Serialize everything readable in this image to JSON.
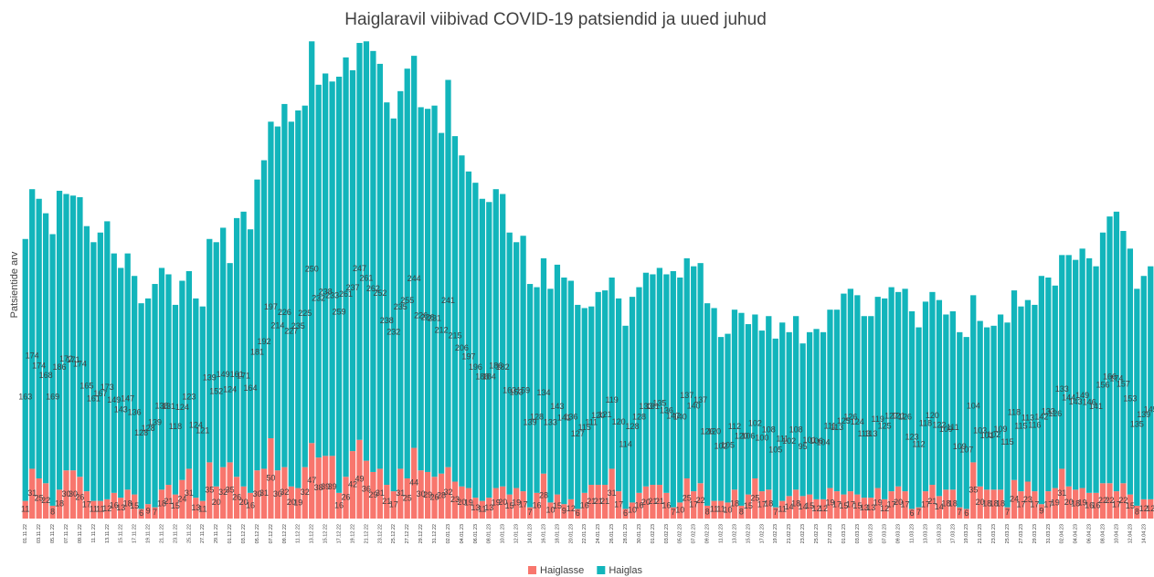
{
  "chart_data": {
    "type": "stacked_bar",
    "title": "Haiglaravil viibivad COVID-19 patsiendid ja uued juhud",
    "y_label": "Patsientide arv",
    "ylim": [
      0,
      300
    ],
    "legend": "bottom",
    "categories": [
      "01.11.22",
      null,
      "03.11.22",
      null,
      "05.11.22",
      null,
      "07.11.22",
      null,
      "09.11.22",
      null,
      "11.11.22",
      null,
      "13.11.22",
      null,
      "15.11.22",
      null,
      "17.11.22",
      null,
      "19.11.22",
      null,
      "21.11.22",
      null,
      "23.11.22",
      null,
      "25.11.22",
      null,
      "27.11.22",
      null,
      "29.11.22",
      null,
      "01.12.22",
      null,
      "03.12.22",
      null,
      "05.12.22",
      null,
      "07.12.22",
      null,
      "09.12.22",
      null,
      "11.12.22",
      null,
      "13.12.22",
      null,
      "15.12.22",
      null,
      "17.12.22",
      null,
      "19.12.22",
      null,
      "21.12.22",
      null,
      "23.12.22",
      null,
      "25.12.22",
      null,
      "27.12.22",
      null,
      "29.12.22",
      null,
      "31.12.22",
      null,
      "02.01.23",
      null,
      "04.01.23",
      null,
      "06.01.23",
      null,
      "08.01.23",
      null,
      "10.01.23",
      null,
      "12.01.23",
      null,
      "14.01.23",
      null,
      "16.01.23",
      null,
      "18.01.23",
      null,
      "20.01.23",
      null,
      "22.01.23",
      null,
      "24.01.23",
      null,
      "26.01.23",
      null,
      "28.01.23",
      null,
      "30.01.23",
      null,
      "01.02.23",
      null,
      "03.02.23",
      null,
      "05.02.23",
      null,
      "07.02.23",
      null,
      "09.02.23",
      null,
      "11.02.23",
      null,
      "13.02.23",
      null,
      "15.02.23",
      null,
      "17.02.23",
      null,
      "19.02.23",
      null,
      "21.02.23",
      null,
      "23.02.23",
      null,
      "25.02.23",
      null,
      "27.02.23",
      null,
      "01.03.23",
      null,
      "03.03.23",
      null,
      "05.03.23",
      null,
      "07.03.23",
      null,
      "09.03.23",
      null,
      "11.03.23",
      null,
      "13.03.23",
      null,
      "15.03.23",
      null,
      "17.03.23",
      null,
      "19.03.23",
      null,
      "21.03.23",
      null,
      "23.03.23",
      null,
      "25.03.23",
      null,
      "27.03.23",
      null,
      "29.03.23",
      null,
      "31.03.23",
      null,
      "02.04.23",
      null,
      "04.04.23",
      null,
      "06.04.23",
      null,
      "08.04.23",
      null,
      "10.04.23",
      null,
      "12.04.23",
      null,
      "14.04.23",
      null
    ],
    "series": [
      {
        "name": "Haiglasse",
        "color": "#f8766d",
        "values": [
          11,
          31,
          25,
          22,
          8,
          18,
          30,
          30,
          26,
          17,
          11,
          11,
          12,
          16,
          13,
          18,
          15,
          6,
          9,
          7,
          18,
          21,
          15,
          24,
          31,
          13,
          11,
          35,
          20,
          32,
          35,
          26,
          20,
          16,
          30,
          31,
          50,
          30,
          32,
          20,
          19,
          32,
          47,
          38,
          39,
          39,
          16,
          26,
          42,
          49,
          36,
          29,
          31,
          21,
          17,
          31,
          25,
          44,
          30,
          29,
          26,
          28,
          32,
          23,
          20,
          19,
          13,
          11,
          13,
          19,
          20,
          15,
          19,
          17,
          7,
          16,
          28,
          10,
          15,
          9,
          12,
          6,
          16,
          21,
          21,
          21,
          31,
          17,
          6,
          10,
          16,
          20,
          21,
          21,
          16,
          7,
          10,
          25,
          17,
          22,
          8,
          11,
          11,
          10,
          18,
          8,
          15,
          25,
          17,
          18,
          7,
          11,
          14,
          18,
          14,
          15,
          12,
          12,
          19,
          17,
          15,
          17,
          15,
          13,
          13,
          19,
          12,
          17,
          20,
          17,
          6,
          7,
          17,
          21,
          14,
          18,
          18,
          7,
          6,
          35,
          20,
          18,
          18,
          18,
          7,
          24,
          17,
          23,
          17,
          9,
          17,
          19,
          31,
          20,
          18,
          19,
          16,
          16,
          22,
          22,
          17,
          22,
          15,
          8,
          12,
          12
        ]
      },
      {
        "name": "Haiglas",
        "color": "#12b5bb",
        "values": [
          163,
          174,
          174,
          168,
          169,
          186,
          172,
          171,
          174,
          165,
          161,
          167,
          173,
          149,
          143,
          147,
          136,
          128,
          128,
          139,
          138,
          131,
          118,
          124,
          123,
          124,
          121,
          139,
          152,
          149,
          124,
          161,
          171,
          164,
          181,
          192,
          197,
          214,
          226,
          227,
          235,
          225,
          250,
          232,
          238,
          233,
          259,
          261,
          237,
          247,
          261,
          262,
          252,
          238,
          232,
          235,
          255,
          244,
          226,
          226,
          231,
          212,
          241,
          215,
          206,
          197,
          196,
          188,
          184,
          186,
          182,
          163,
          153,
          159,
          139,
          128,
          134,
          133,
          143,
          141,
          136,
          127,
          115,
          111,
          120,
          121,
          119,
          120,
          114,
          128,
          128,
          133,
          131,
          135,
          136,
          147,
          140,
          137,
          140,
          137,
          126,
          120,
          102,
          105,
          112,
          120,
          106,
          102,
          100,
          108,
          105,
          111,
          102,
          108,
          95,
          101,
          106,
          104,
          111,
          113,
          125,
          126,
          124,
          113,
          113,
          119,
          125,
          127,
          121,
          126,
          123,
          112,
          118,
          120,
          122,
          109,
          111,
          109,
          107,
          104,
          103,
          101,
          102,
          109,
          115,
          118,
          115,
          113,
          116,
          142,
          133,
          126,
          133,
          144,
          143,
          149,
          146,
          141,
          156,
          166,
          174,
          157,
          153,
          135,
          139,
          145
        ]
      }
    ]
  }
}
